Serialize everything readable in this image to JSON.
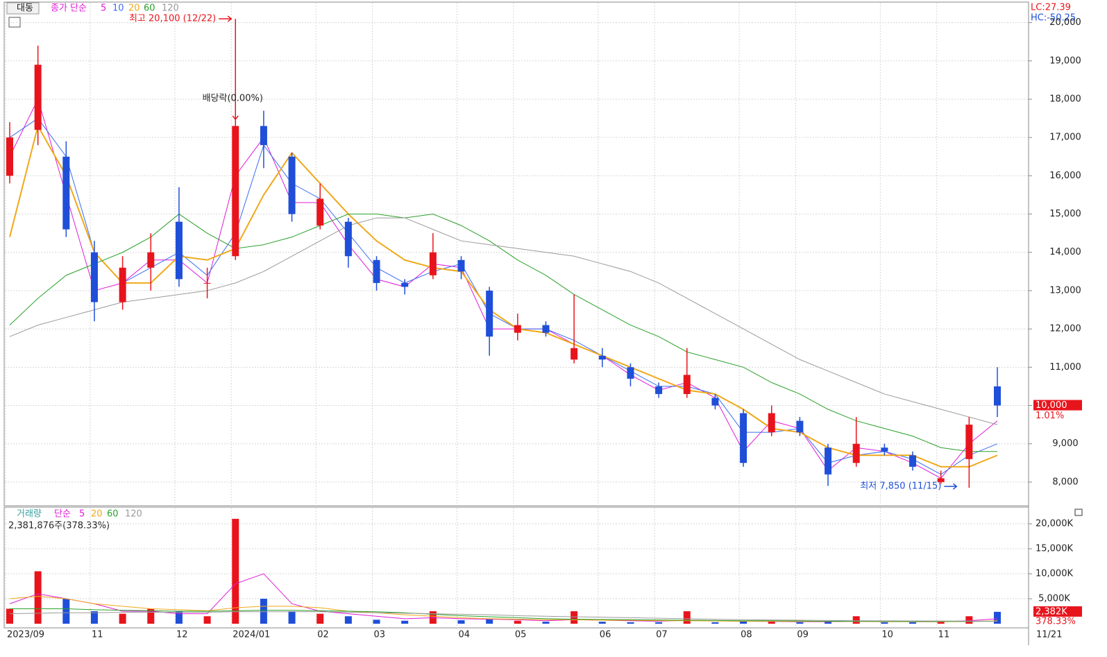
{
  "chart_data": [
    {
      "type": "candlestick",
      "title": "대동",
      "legend_label": "종가 단순",
      "up_color": "#e8141c",
      "down_color": "#1f4fd8",
      "open": [
        16000,
        17200,
        16500,
        14000,
        12700,
        13600,
        14800,
        13200,
        13900,
        17300,
        16500,
        14700,
        14800,
        13800,
        13200,
        13400,
        13800,
        13000,
        11900,
        12100,
        11200,
        11300,
        11000,
        10500,
        10300,
        10200,
        9800,
        9300,
        9600,
        8900,
        8500,
        8900,
        8700,
        8000,
        8600,
        10500
      ],
      "high": [
        17400,
        19400,
        16900,
        14300,
        13900,
        14500,
        15700,
        13600,
        20100,
        17700,
        16600,
        15800,
        14900,
        13900,
        13300,
        14500,
        13900,
        13100,
        12400,
        12200,
        12900,
        11500,
        11100,
        10600,
        11500,
        10300,
        9900,
        10000,
        9700,
        9000,
        9700,
        9000,
        8800,
        8300,
        9700,
        11000
      ],
      "low": [
        15800,
        16800,
        14400,
        12200,
        12500,
        13000,
        13100,
        12800,
        13800,
        16200,
        14800,
        14600,
        13600,
        13000,
        12900,
        13300,
        13300,
        11300,
        11700,
        11800,
        11100,
        11000,
        10500,
        10200,
        10200,
        9900,
        8400,
        9200,
        9200,
        7900,
        8400,
        8700,
        8300,
        7950,
        7850,
        9700
      ],
      "close": [
        17000,
        18900,
        14600,
        12700,
        13600,
        14000,
        13300,
        13200,
        17300,
        16800,
        15000,
        15400,
        13900,
        13200,
        13100,
        14000,
        13500,
        11800,
        12100,
        11900,
        11500,
        11200,
        10700,
        10300,
        10800,
        10000,
        8500,
        9800,
        9300,
        8200,
        9000,
        8800,
        8400,
        8100,
        9500,
        10000
      ],
      "series": [
        {
          "name": "5",
          "color": "#e01ad8",
          "width": 1,
          "values": [
            16500,
            18000,
            15500,
            13000,
            13200,
            13800,
            13800,
            13200,
            16000,
            17000,
            15300,
            15300,
            14200,
            13300,
            13100,
            13700,
            13600,
            12000,
            12000,
            12000,
            11600,
            11300,
            10800,
            10400,
            10600,
            10200,
            8800,
            9600,
            9400,
            8300,
            8900,
            8800,
            8500,
            8100,
            9000,
            9600
          ]
        },
        {
          "name": "10",
          "color": "#3a6cf0",
          "width": 1,
          "values": [
            17000,
            17500,
            16500,
            14000,
            13200,
            13600,
            14000,
            13400,
            14500,
            16800,
            15800,
            15400,
            14500,
            13600,
            13200,
            13500,
            13700,
            12400,
            12000,
            12000,
            11700,
            11300,
            10900,
            10500,
            10500,
            10300,
            9300,
            9300,
            9400,
            8500,
            8700,
            8800,
            8600,
            8200,
            8700,
            9000
          ]
        },
        {
          "name": "20",
          "color": "#f0a818",
          "width": 2,
          "values": [
            14400,
            17300,
            16000,
            14000,
            13200,
            13200,
            13900,
            13800,
            14100,
            15500,
            16600,
            15800,
            15000,
            14300,
            13800,
            13600,
            13500,
            12500,
            12000,
            11900,
            11600,
            11300,
            11000,
            10700,
            10400,
            10300,
            9900,
            9400,
            9300,
            8900,
            8700,
            8700,
            8700,
            8400,
            8400,
            8700
          ]
        },
        {
          "name": "60",
          "color": "#2aa02a",
          "width": 1,
          "values": [
            12100,
            12800,
            13400,
            13700,
            14000,
            14400,
            15000,
            14500,
            14100,
            14200,
            14400,
            14700,
            15000,
            15000,
            14900,
            15000,
            14700,
            14300,
            13800,
            13400,
            12900,
            12500,
            12100,
            11800,
            11400,
            11200,
            11000,
            10600,
            10300,
            9900,
            9600,
            9400,
            9200,
            8900,
            8800,
            8800
          ]
        },
        {
          "name": "120",
          "color": "#9a9a9a",
          "width": 1,
          "values": [
            11800,
            12100,
            12300,
            12500,
            12700,
            12800,
            12900,
            13000,
            13200,
            13500,
            13900,
            14300,
            14700,
            14900,
            14900,
            14600,
            14300,
            14200,
            14100,
            14000,
            13900,
            13700,
            13500,
            13200,
            12800,
            12400,
            12000,
            11600,
            11200,
            10900,
            10600,
            10300,
            10100,
            9900,
            9700,
            9500
          ]
        }
      ],
      "ylim": [
        7400,
        20500
      ],
      "yticks": [
        {
          "value": 8000,
          "label": "8,000"
        },
        {
          "value": 9000,
          "label": "9,000"
        },
        {
          "value": 10000,
          "label": "10,000"
        },
        {
          "value": 11000,
          "label": "11,000"
        },
        {
          "value": 12000,
          "label": "12,000"
        },
        {
          "value": 13000,
          "label": "13,000"
        },
        {
          "value": 14000,
          "label": "14,000"
        },
        {
          "value": 15000,
          "label": "15,000"
        },
        {
          "value": 16000,
          "label": "16,000"
        },
        {
          "value": 17000,
          "label": "17,000"
        },
        {
          "value": 18000,
          "label": "18,000"
        },
        {
          "value": 19000,
          "label": "19,000"
        },
        {
          "value": 20000,
          "label": "20,000"
        }
      ],
      "current": {
        "value": 10000,
        "label": "10,000",
        "change": "1.01%"
      },
      "lc": "LC:27.39",
      "hc": "HC:-50.25",
      "annotations": {
        "high": "최고 20,100 (12/22)",
        "ex_dividend": "배당락(0.00%)",
        "low": "최저 7,850 (11/15)"
      },
      "grid": true
    },
    {
      "type": "bar",
      "title": "거래량",
      "legend_label": "단순",
      "info": "2,381,876주(378.33%)",
      "categories": [
        "2023/09",
        null,
        null,
        "11",
        null,
        null,
        "12",
        null,
        "2024/01",
        null,
        null,
        "02",
        null,
        "03",
        null,
        null,
        "04",
        null,
        "05",
        null,
        null,
        "06",
        null,
        "07",
        null,
        null,
        "08",
        null,
        "09",
        null,
        null,
        "10",
        null,
        "11",
        null,
        "11/21"
      ],
      "values": [
        3000,
        10500,
        5000,
        2500,
        2000,
        3000,
        2500,
        1500,
        21000,
        5000,
        2500,
        2000,
        1500,
        800,
        600,
        2500,
        700,
        1000,
        600,
        400,
        2500,
        400,
        300,
        300,
        2500,
        300,
        600,
        400,
        300,
        400,
        1500,
        300,
        300,
        500,
        1500,
        2382
      ],
      "series": [
        {
          "name": "5",
          "color": "#e01ad8",
          "values": [
            4000,
            6000,
            5000,
            4000,
            2500,
            2500,
            2000,
            2000,
            8000,
            10000,
            4000,
            2500,
            2000,
            1500,
            1000,
            1200,
            1000,
            900,
            800,
            600,
            800,
            700,
            600,
            500,
            700,
            600,
            500,
            450,
            400,
            400,
            500,
            450,
            400,
            400,
            600,
            1000
          ]
        },
        {
          "name": "20",
          "color": "#f0a818",
          "values": [
            5000,
            5500,
            5000,
            4000,
            3500,
            3000,
            2800,
            2600,
            3200,
            3500,
            3500,
            3200,
            2500,
            2200,
            1800,
            1500,
            1200,
            1000,
            900,
            800,
            800,
            700,
            700,
            600,
            600,
            550,
            500,
            500,
            450,
            450,
            450,
            400,
            400,
            400,
            450,
            600
          ]
        },
        {
          "name": "60",
          "color": "#2aa02a",
          "values": [
            3000,
            3000,
            3000,
            2800,
            2700,
            2600,
            2500,
            2500,
            2600,
            2700,
            2700,
            2600,
            2500,
            2400,
            2200,
            1900,
            1600,
            1400,
            1200,
            1000,
            900,
            850,
            800,
            750,
            700,
            650,
            600,
            600,
            550,
            500,
            500,
            480,
            450,
            450,
            450,
            500
          ]
        },
        {
          "name": "120",
          "color": "#9a9a9a",
          "values": [
            2000,
            2100,
            2200,
            2200,
            2300,
            2300,
            2300,
            2300,
            2400,
            2400,
            2400,
            2400,
            2300,
            2200,
            2100,
            2000,
            1900,
            1800,
            1600,
            1500,
            1400,
            1300,
            1200,
            1100,
            1000,
            900,
            800,
            750,
            700,
            650,
            600,
            580,
            560,
            540,
            520,
            500
          ]
        }
      ],
      "ylim": [
        -550,
        23200
      ],
      "yticks": [
        {
          "value": 5000,
          "label": "5,000K"
        },
        {
          "value": 10000,
          "label": "10,000K"
        },
        {
          "value": 15000,
          "label": "15,000K"
        },
        {
          "value": 20000,
          "label": "20,000K"
        }
      ],
      "current": {
        "value": 2382,
        "label": "2,382K",
        "change": "378.33%"
      },
      "grid": true
    }
  ]
}
